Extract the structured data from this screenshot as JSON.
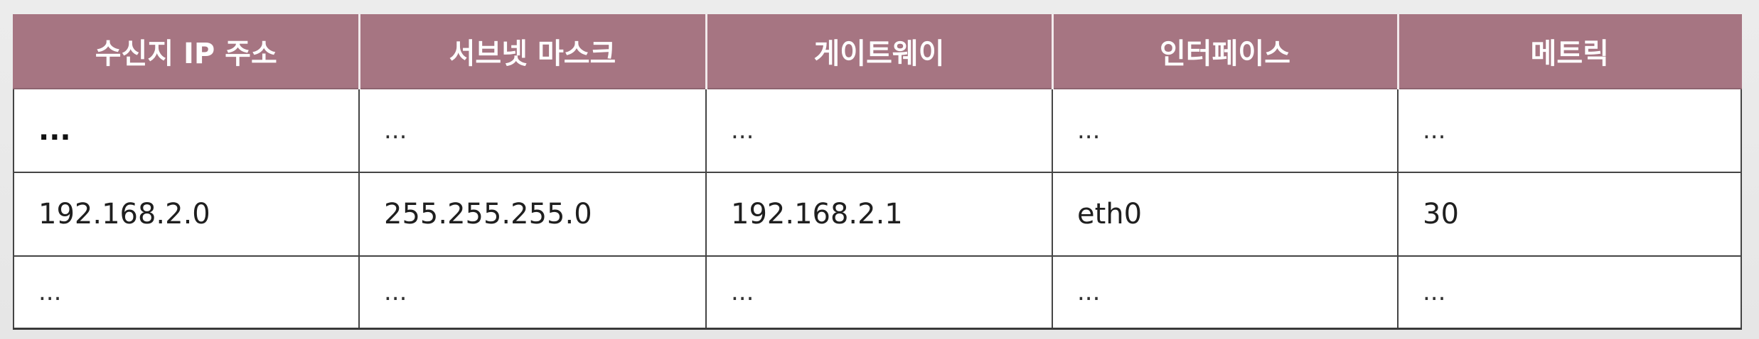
{
  "table": {
    "headers": [
      "수신지 IP 주소",
      "서브넷 마스크",
      "게이트웨이",
      "인터페이스",
      "메트릭"
    ],
    "rows": [
      [
        "...",
        "...",
        "...",
        "...",
        "..."
      ],
      [
        "192.168.2.0",
        "255.255.255.0",
        "192.168.2.1",
        "eth0",
        "30"
      ],
      [
        "...",
        "...",
        "...",
        "...",
        "..."
      ]
    ]
  },
  "colors": {
    "header_background": "#a67582",
    "header_text": "#ffffff",
    "grid_lines": "#444444",
    "page_background": "#e9e9e9"
  }
}
